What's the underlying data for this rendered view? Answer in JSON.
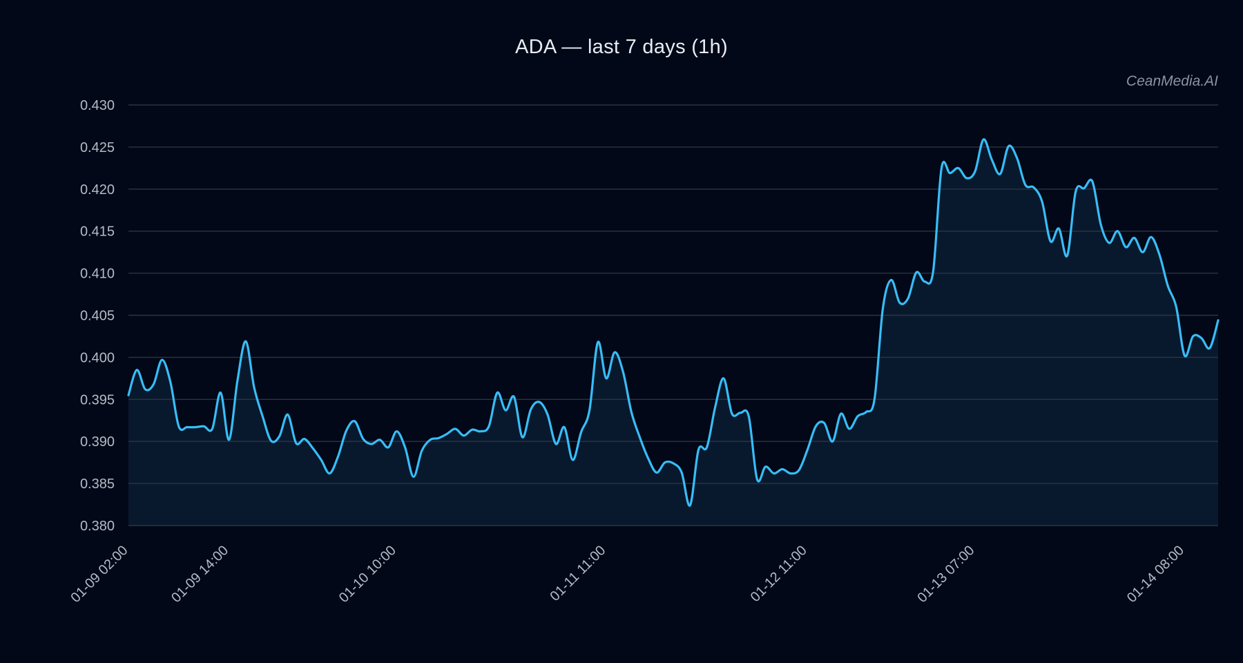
{
  "chart_data": {
    "type": "area",
    "title": "ADA — last 7 days (1h)",
    "watermark": "CeanMedia.AI",
    "xlabel": "",
    "ylabel": "",
    "ylim": [
      0.38,
      0.43
    ],
    "y_ticks": [
      "0.380",
      "0.385",
      "0.390",
      "0.395",
      "0.400",
      "0.405",
      "0.410",
      "0.415",
      "0.420",
      "0.425",
      "0.430"
    ],
    "x_ticks": [
      {
        "label": "01-09 02:00",
        "index": 0
      },
      {
        "label": "01-09 14:00",
        "index": 12
      },
      {
        "label": "01-10 10:00",
        "index": 32
      },
      {
        "label": "01-11 11:00",
        "index": 57
      },
      {
        "label": "01-12 11:00",
        "index": 81
      },
      {
        "label": "01-13 07:00",
        "index": 101
      },
      {
        "label": "01-14 08:00",
        "index": 126
      }
    ],
    "grid": true,
    "colors": {
      "background": "#020817",
      "line": "#38bdf8",
      "fill": "#0a1a2e",
      "grid": "#2b3443",
      "text": "#b4bcc8"
    },
    "series": [
      {
        "values": [
          0.3955,
          0.3985,
          0.3962,
          0.3968,
          0.3997,
          0.3971,
          0.3918,
          0.3917,
          0.3917,
          0.3918,
          0.3915,
          0.3958,
          0.3902,
          0.3972,
          0.4019,
          0.3964,
          0.393,
          0.3901,
          0.3906,
          0.3932,
          0.3898,
          0.3903,
          0.3892,
          0.3878,
          0.3862,
          0.3882,
          0.3913,
          0.3924,
          0.3903,
          0.3897,
          0.3902,
          0.3893,
          0.3912,
          0.3893,
          0.3858,
          0.3889,
          0.3902,
          0.3904,
          0.3909,
          0.3915,
          0.3907,
          0.3914,
          0.3912,
          0.3918,
          0.3958,
          0.3937,
          0.3953,
          0.3905,
          0.3938,
          0.3947,
          0.3932,
          0.3897,
          0.3917,
          0.3878,
          0.3911,
          0.3937,
          0.4018,
          0.3975,
          0.4006,
          0.3983,
          0.3935,
          0.3905,
          0.388,
          0.3863,
          0.3875,
          0.3874,
          0.3863,
          0.3824,
          0.389,
          0.3893,
          0.3941,
          0.3975,
          0.3933,
          0.3934,
          0.393,
          0.3855,
          0.387,
          0.3862,
          0.3867,
          0.3862,
          0.3866,
          0.389,
          0.3918,
          0.3922,
          0.39,
          0.3933,
          0.3915,
          0.393,
          0.3935,
          0.395,
          0.4058,
          0.4092,
          0.4065,
          0.407,
          0.4101,
          0.409,
          0.4102,
          0.4225,
          0.4219,
          0.4225,
          0.4213,
          0.4221,
          0.4259,
          0.4235,
          0.4218,
          0.4251,
          0.4237,
          0.4205,
          0.4202,
          0.4185,
          0.4138,
          0.4153,
          0.4121,
          0.4197,
          0.4201,
          0.4209,
          0.4158,
          0.4136,
          0.415,
          0.4131,
          0.4142,
          0.4125,
          0.4143,
          0.4122,
          0.4085,
          0.406,
          0.4002,
          0.4025,
          0.4023,
          0.4011,
          0.4044
        ]
      }
    ]
  }
}
